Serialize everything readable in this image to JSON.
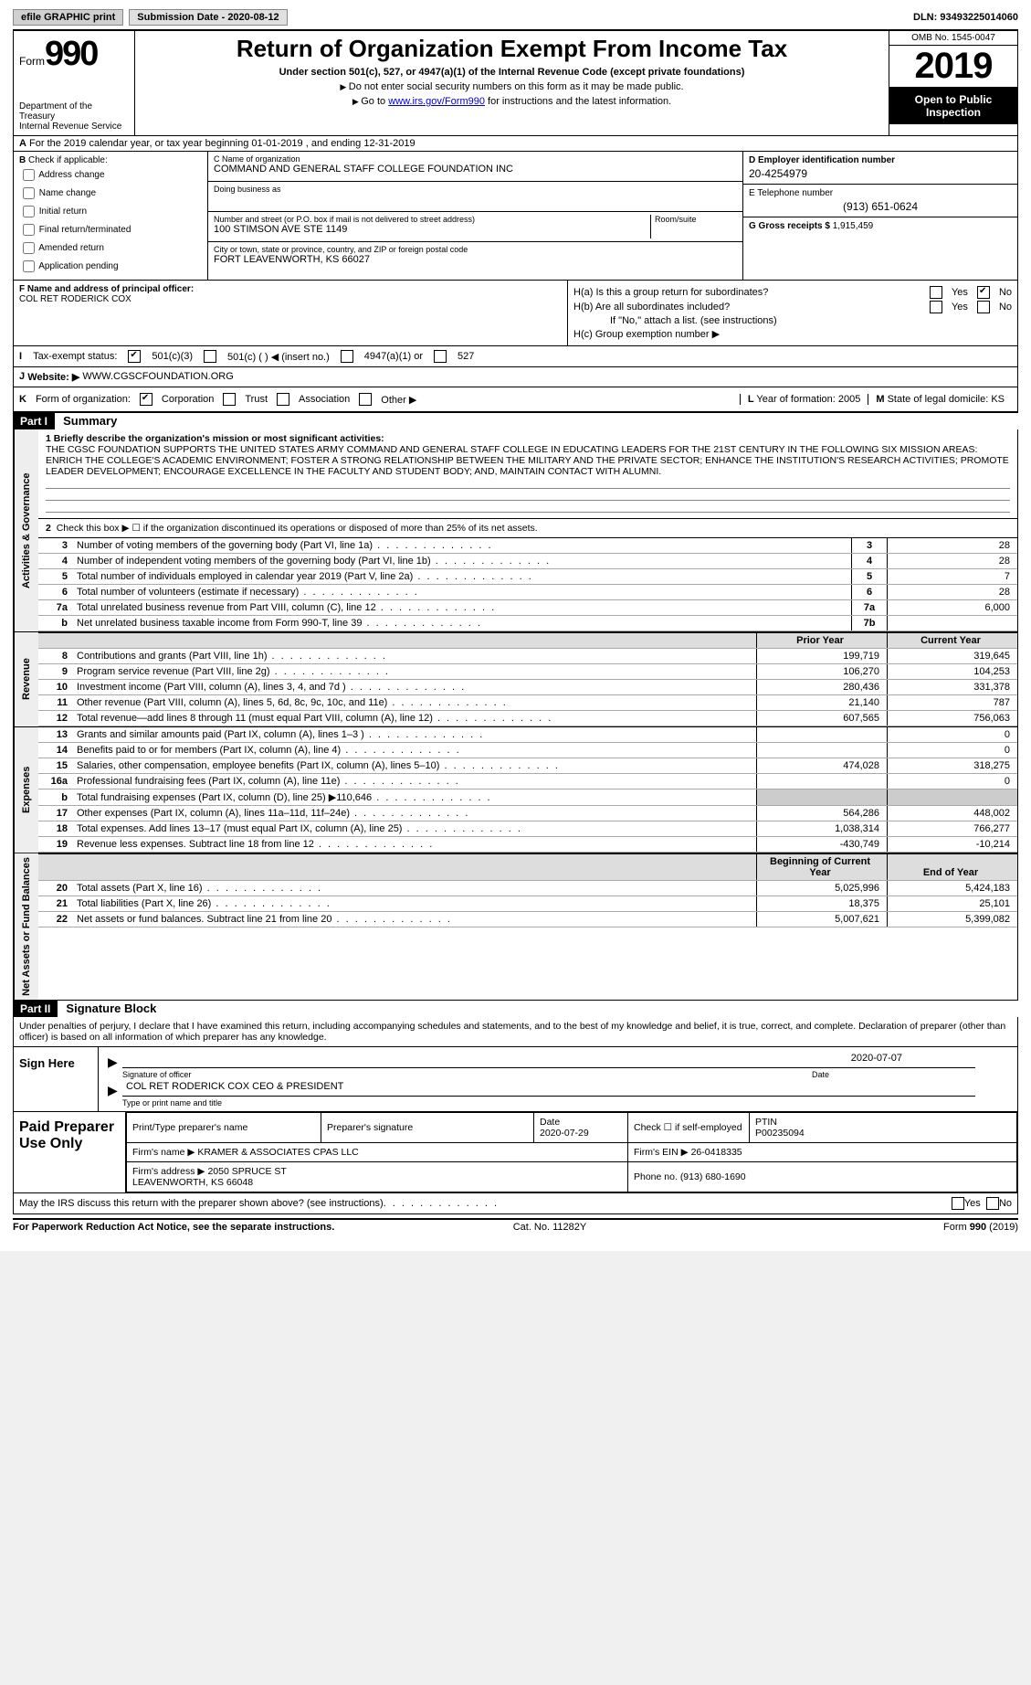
{
  "topbar": {
    "efile": "efile GRAPHIC print",
    "submission": "Submission Date - 2020-08-12",
    "dln": "DLN: 93493225014060"
  },
  "header": {
    "form_label": "Form",
    "form_no": "990",
    "dept1": "Department of the Treasury",
    "dept2": "Internal Revenue Service",
    "title": "Return of Organization Exempt From Income Tax",
    "subtitle": "Under section 501(c), 527, or 4947(a)(1) of the Internal Revenue Code (except private foundations)",
    "note1": "Do not enter social security numbers on this form as it may be made public.",
    "note2_pre": "Go to ",
    "note2_link": "www.irs.gov/Form990",
    "note2_post": " for instructions and the latest information.",
    "omb": "OMB No. 1545-0047",
    "year": "2019",
    "open": "Open to Public Inspection"
  },
  "rowA": "For the 2019 calendar year, or tax year beginning 01-01-2019   , and ending 12-31-2019",
  "B": {
    "label": "Check if applicable:",
    "opts": [
      "Address change",
      "Name change",
      "Initial return",
      "Final return/terminated",
      "Amended return",
      "Application pending"
    ]
  },
  "C": {
    "name_lbl": "C Name of organization",
    "name": "COMMAND AND GENERAL STAFF COLLEGE FOUNDATION INC",
    "dba_lbl": "Doing business as",
    "dba": "",
    "street_lbl": "Number and street (or P.O. box if mail is not delivered to street address)",
    "room_lbl": "Room/suite",
    "street": "100 STIMSON AVE STE 1149",
    "city_lbl": "City or town, state or province, country, and ZIP or foreign postal code",
    "city": "FORT LEAVENWORTH, KS  66027"
  },
  "D": {
    "ein_lbl": "D Employer identification number",
    "ein": "20-4254979",
    "tel_lbl": "E Telephone number",
    "tel": "(913) 651-0624",
    "gross_lbl": "G Gross receipts $",
    "gross": "1,915,459"
  },
  "F": {
    "label": "F  Name and address of principal officer:",
    "name": "COL RET RODERICK COX"
  },
  "H": {
    "a": "H(a)  Is this a group return for subordinates?",
    "b": "H(b)  Are all subordinates included?",
    "b_note": "If \"No,\" attach a list. (see instructions)",
    "c": "H(c)  Group exemption number ▶",
    "yes": "Yes",
    "no": "No"
  },
  "I": {
    "label": "Tax-exempt status:",
    "o1": "501(c)(3)",
    "o2": "501(c) (   ) ◀ (insert no.)",
    "o3": "4947(a)(1) or",
    "o4": "527"
  },
  "J": {
    "label": "Website: ▶",
    "val": "WWW.CGSCFOUNDATION.ORG"
  },
  "K": {
    "label": "Form of organization:",
    "o1": "Corporation",
    "o2": "Trust",
    "o3": "Association",
    "o4": "Other ▶",
    "L": "Year of formation: 2005",
    "M": "State of legal domicile: KS"
  },
  "partI": {
    "header": "Part I",
    "title": "Summary",
    "side_gov": "Activities & Governance",
    "side_rev": "Revenue",
    "side_exp": "Expenses",
    "side_net": "Net Assets or Fund Balances",
    "line1_lbl": "1  Briefly describe the organization's mission or most significant activities:",
    "line1": "THE CGSC FOUNDATION SUPPORTS THE UNITED STATES ARMY COMMAND AND GENERAL STAFF COLLEGE IN EDUCATING LEADERS FOR THE 21ST CENTURY IN THE FOLLOWING SIX MISSION AREAS: ENRICH THE COLLEGE'S ACADEMIC ENVIRONMENT; FOSTER A STRONG RELATIONSHIP BETWEEN THE MILITARY AND THE PRIVATE SECTOR; ENHANCE THE INSTITUTION'S RESEARCH ACTIVITIES; PROMOTE LEADER DEVELOPMENT; ENCOURAGE EXCELLENCE IN THE FACULTY AND STUDENT BODY; AND, MAINTAIN CONTACT WITH ALUMNI.",
    "line2": "Check this box ▶ ☐ if the organization discontinued its operations or disposed of more than 25% of its net assets.",
    "lines_gov": [
      {
        "n": "3",
        "t": "Number of voting members of the governing body (Part VI, line 1a)",
        "box": "3",
        "v": "28"
      },
      {
        "n": "4",
        "t": "Number of independent voting members of the governing body (Part VI, line 1b)",
        "box": "4",
        "v": "28"
      },
      {
        "n": "5",
        "t": "Total number of individuals employed in calendar year 2019 (Part V, line 2a)",
        "box": "5",
        "v": "7"
      },
      {
        "n": "6",
        "t": "Total number of volunteers (estimate if necessary)",
        "box": "6",
        "v": "28"
      },
      {
        "n": "7a",
        "t": "Total unrelated business revenue from Part VIII, column (C), line 12",
        "box": "7a",
        "v": "6,000"
      },
      {
        "n": "b",
        "t": "Net unrelated business taxable income from Form 990-T, line 39",
        "box": "7b",
        "v": ""
      }
    ],
    "hdr_prior": "Prior Year",
    "hdr_curr": "Current Year",
    "lines_rev": [
      {
        "n": "8",
        "t": "Contributions and grants (Part VIII, line 1h)",
        "p": "199,719",
        "c": "319,645"
      },
      {
        "n": "9",
        "t": "Program service revenue (Part VIII, line 2g)",
        "p": "106,270",
        "c": "104,253"
      },
      {
        "n": "10",
        "t": "Investment income (Part VIII, column (A), lines 3, 4, and 7d )",
        "p": "280,436",
        "c": "331,378"
      },
      {
        "n": "11",
        "t": "Other revenue (Part VIII, column (A), lines 5, 6d, 8c, 9c, 10c, and 11e)",
        "p": "21,140",
        "c": "787"
      },
      {
        "n": "12",
        "t": "Total revenue—add lines 8 through 11 (must equal Part VIII, column (A), line 12)",
        "p": "607,565",
        "c": "756,063"
      }
    ],
    "lines_exp": [
      {
        "n": "13",
        "t": "Grants and similar amounts paid (Part IX, column (A), lines 1–3 )",
        "p": "",
        "c": "0"
      },
      {
        "n": "14",
        "t": "Benefits paid to or for members (Part IX, column (A), line 4)",
        "p": "",
        "c": "0"
      },
      {
        "n": "15",
        "t": "Salaries, other compensation, employee benefits (Part IX, column (A), lines 5–10)",
        "p": "474,028",
        "c": "318,275"
      },
      {
        "n": "16a",
        "t": "Professional fundraising fees (Part IX, column (A), line 11e)",
        "p": "",
        "c": "0"
      },
      {
        "n": "b",
        "t": "Total fundraising expenses (Part IX, column (D), line 25) ▶110,646",
        "p": "—",
        "c": "—"
      },
      {
        "n": "17",
        "t": "Other expenses (Part IX, column (A), lines 11a–11d, 11f–24e)",
        "p": "564,286",
        "c": "448,002"
      },
      {
        "n": "18",
        "t": "Total expenses. Add lines 13–17 (must equal Part IX, column (A), line 25)",
        "p": "1,038,314",
        "c": "766,277"
      },
      {
        "n": "19",
        "t": "Revenue less expenses. Subtract line 18 from line 12",
        "p": "-430,749",
        "c": "-10,214"
      }
    ],
    "hdr_beg": "Beginning of Current Year",
    "hdr_end": "End of Year",
    "lines_net": [
      {
        "n": "20",
        "t": "Total assets (Part X, line 16)",
        "p": "5,025,996",
        "c": "5,424,183"
      },
      {
        "n": "21",
        "t": "Total liabilities (Part X, line 26)",
        "p": "18,375",
        "c": "25,101"
      },
      {
        "n": "22",
        "t": "Net assets or fund balances. Subtract line 21 from line 20",
        "p": "5,007,621",
        "c": "5,399,082"
      }
    ]
  },
  "partII": {
    "header": "Part II",
    "title": "Signature Block",
    "declare": "Under penalties of perjury, I declare that I have examined this return, including accompanying schedules and statements, and to the best of my knowledge and belief, it is true, correct, and complete. Declaration of preparer (other than officer) is based on all information of which preparer has any knowledge.",
    "sign_here": "Sign Here",
    "sig_officer": "Signature of officer",
    "sig_date": "2020-07-07",
    "sig_name": "COL RET RODERICK COX  CEO & PRESIDENT",
    "sig_name_lbl": "Type or print name and title",
    "date_lbl": "Date",
    "paid": "Paid Preparer Use Only",
    "pp_name_lbl": "Print/Type preparer's name",
    "pp_sig_lbl": "Preparer's signature",
    "pp_date_lbl": "Date",
    "pp_date": "2020-07-29",
    "pp_self": "Check ☐ if self-employed",
    "ptin_lbl": "PTIN",
    "ptin": "P00235094",
    "firm_name_lbl": "Firm's name    ▶",
    "firm_name": "KRAMER & ASSOCIATES CPAS LLC",
    "firm_ein_lbl": "Firm's EIN ▶",
    "firm_ein": "26-0418335",
    "firm_addr_lbl": "Firm's address ▶",
    "firm_addr": "2050 SPRUCE ST\nLEAVENWORTH, KS  66048",
    "firm_phone_lbl": "Phone no.",
    "firm_phone": "(913) 680-1690",
    "may_discuss": "May the IRS discuss this return with the preparer shown above? (see instructions)"
  },
  "footer": {
    "left": "For Paperwork Reduction Act Notice, see the separate instructions.",
    "mid": "Cat. No. 11282Y",
    "right": "Form 990 (2019)"
  }
}
